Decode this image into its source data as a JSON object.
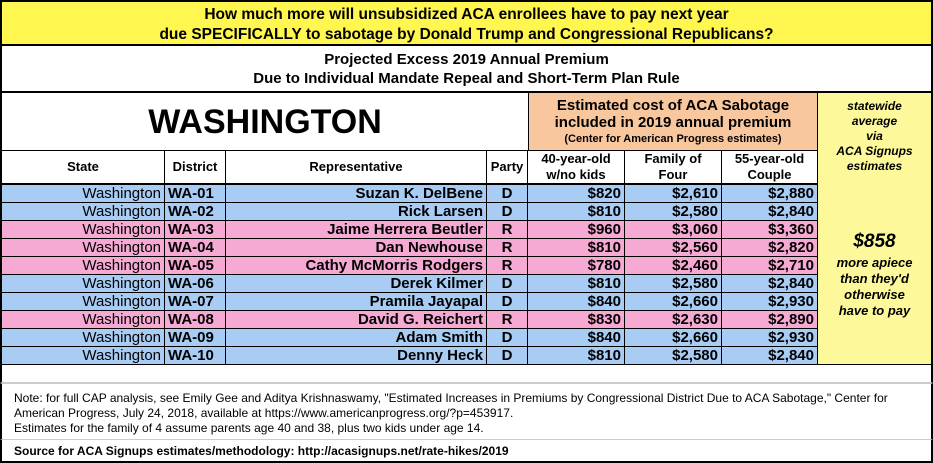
{
  "title": {
    "line1": "How much more will unsubsidized ACA enrollees have to pay next year",
    "line2": "due SPECIFICALLY to sabotage by Donald Trump and Congressional Republicans?"
  },
  "subtitle": {
    "line1": "Projected Excess 2019 Annual Premium",
    "line2": "Due to Individual Mandate Repeal and Short-Term Plan Rule"
  },
  "state_heading": "WASHINGTON",
  "cost_header": {
    "line1": "Estimated cost of ACA Sabotage",
    "line2": "included in 2019 annual premium",
    "line3": "(Center for American Progress estimates)"
  },
  "avg_header": [
    "statewide",
    "average",
    "via",
    "ACA Signups",
    "estimates"
  ],
  "columns": [
    "State",
    "District",
    "Representative",
    "Party",
    "40-year-old w/no kids",
    "Family of Four",
    "55-year-old Couple"
  ],
  "colors": {
    "democrat": "#a8ccf3",
    "republican": "#f5a9d3",
    "title": "#fff64f",
    "cost_header": "#f9c79d",
    "average": "#fdf99a"
  },
  "rows": [
    [
      "Washington",
      "WA-01",
      "Suzan K. DelBene",
      "D",
      "$820",
      "$2,610",
      "$2,880"
    ],
    [
      "Washington",
      "WA-02",
      "Rick Larsen",
      "D",
      "$810",
      "$2,580",
      "$2,840"
    ],
    [
      "Washington",
      "WA-03",
      "Jaime Herrera Beutler",
      "R",
      "$960",
      "$3,060",
      "$3,360"
    ],
    [
      "Washington",
      "WA-04",
      "Dan Newhouse",
      "R",
      "$810",
      "$2,560",
      "$2,820"
    ],
    [
      "Washington",
      "WA-05",
      "Cathy McMorris Rodgers",
      "R",
      "$780",
      "$2,460",
      "$2,710"
    ],
    [
      "Washington",
      "WA-06",
      "Derek Kilmer",
      "D",
      "$810",
      "$2,580",
      "$2,840"
    ],
    [
      "Washington",
      "WA-07",
      "Pramila Jayapal",
      "D",
      "$840",
      "$2,660",
      "$2,930"
    ],
    [
      "Washington",
      "WA-08",
      "David G. Reichert",
      "R",
      "$830",
      "$2,630",
      "$2,890"
    ],
    [
      "Washington",
      "WA-09",
      "Adam Smith",
      "D",
      "$840",
      "$2,660",
      "$2,930"
    ],
    [
      "Washington",
      "WA-10",
      "Denny Heck",
      "D",
      "$810",
      "$2,580",
      "$2,840"
    ]
  ],
  "average": {
    "value": "$858",
    "text": [
      "more apiece",
      "than they'd",
      "otherwise",
      "have to pay"
    ]
  },
  "note": {
    "line1": "Note: for full CAP analysis, see Emily Gee and Aditya Krishnaswamy, \"Estimated Increases in Premiums by Congressional District Due to ACA Sabotage,\" Center for American Progress, July 24, 2018, available at https://www.americanprogress.org/?p=453917.",
    "line2": "Estimates for the family of 4 assume parents age 40 and 38, plus two kids under age 14."
  },
  "source": "Source for ACA Signups estimates/methodology: http://acasignups.net/rate-hikes/2019"
}
